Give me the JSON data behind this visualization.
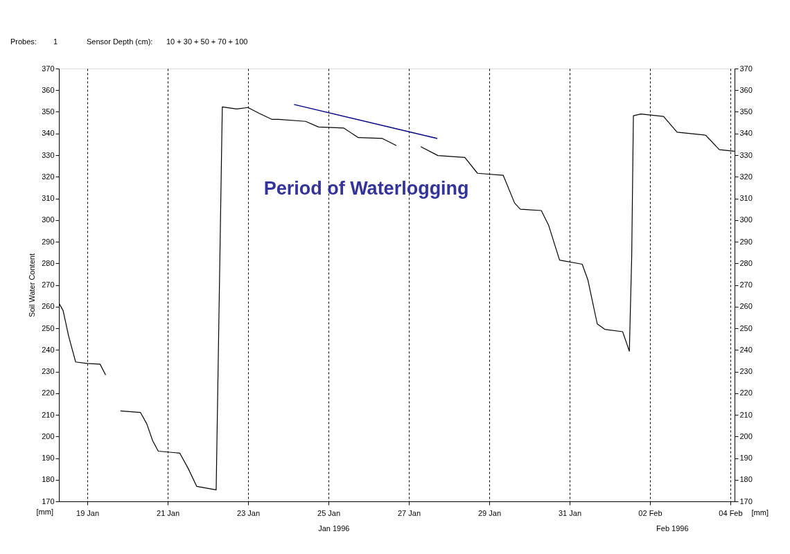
{
  "chart_data": {
    "type": "line",
    "ylabel": "Soil Water Content",
    "y2label": "[mm]",
    "annotations": [
      "Probes:",
      "1",
      "Sensor Depth (cm):",
      "10 + 30 + 50 + 70 + 100",
      "Period of Waterlogging",
      "[mm]",
      "Jan 1996",
      "Feb 1996"
    ],
    "xlim": [
      "1996-01-18T07:00",
      "1996-02-04T02:30"
    ],
    "xticks": [
      {
        "value": "1996-01-19",
        "label": "19 Jan"
      },
      {
        "value": "1996-01-21",
        "label": "21 Jan"
      },
      {
        "value": "1996-01-23",
        "label": "23 Jan"
      },
      {
        "value": "1996-01-25",
        "label": "25 Jan"
      },
      {
        "value": "1996-01-27",
        "label": "27 Jan"
      },
      {
        "value": "1996-01-29",
        "label": "29 Jan"
      },
      {
        "value": "1996-01-31",
        "label": "31 Jan"
      },
      {
        "value": "1996-02-02",
        "label": "02 Feb"
      },
      {
        "value": "1996-02-04",
        "label": "04 Feb"
      }
    ],
    "ylim": [
      170,
      370
    ],
    "yticks": [
      170,
      180,
      190,
      200,
      210,
      220,
      230,
      240,
      250,
      260,
      270,
      280,
      290,
      300,
      310,
      320,
      330,
      340,
      350,
      360,
      370
    ],
    "y2lim": [
      170,
      370
    ],
    "y2ticks": [
      170,
      180,
      190,
      200,
      210,
      220,
      230,
      240,
      250,
      260,
      270,
      280,
      290,
      300,
      310,
      320,
      330,
      340,
      350,
      360,
      370
    ],
    "grid": "x",
    "line_style": "solid",
    "series": [
      {
        "color": "#000000",
        "x": [
          "1996-01-18T07:10",
          "1996-01-18T09:30",
          "1996-01-18T12:50",
          "1996-01-18T17:00",
          "1996-01-19T00:00",
          "1996-01-19T07:35",
          "1996-01-19T10:55",
          "1996-01-19T15:00",
          "1996-01-19T19:45",
          "1996-01-20T07:40",
          "1996-01-20T11:30",
          "1996-01-20T15:00",
          "1996-01-20T18:20",
          "1996-01-21T07:10",
          "1996-01-21T12:05",
          "1996-01-21T17:20",
          "1996-01-22T04:55",
          "1996-01-22T08:35",
          "1996-01-22T17:10",
          "1996-01-22T23:55",
          "1996-01-23T06:40",
          "1996-01-23T14:20",
          "1996-01-23T18:10",
          "1996-01-24T10:20",
          "1996-01-24T18:00",
          "1996-01-25T09:10",
          "1996-01-25T17:45",
          "1996-01-26T08:10",
          "1996-01-26T16:35",
          "1996-01-27T00:00",
          "1996-01-27T07:05",
          "1996-01-27T17:20",
          "1996-01-28T09:25",
          "1996-01-28T17:00",
          "1996-01-29T08:20",
          "1996-01-29T15:10",
          "1996-01-29T18:35",
          "1996-01-30T07:05",
          "1996-01-30T11:30",
          "1996-01-30T18:00",
          "1996-01-31T07:30",
          "1996-01-31T10:55",
          "1996-01-31T16:30",
          "1996-01-31T21:00",
          "1996-02-01T07:40",
          "1996-02-01T11:40",
          "1996-02-01T13:05",
          "1996-02-01T14:05",
          "1996-02-01T18:30",
          "1996-02-02T08:05",
          "1996-02-02T16:10",
          "1996-02-03T09:15",
          "1996-02-03T17:25",
          "1996-02-04T02:25"
        ],
        "values": [
          261.4,
          258.2,
          246.3,
          234.4,
          233.7,
          233.4,
          228.4,
          null,
          211.8,
          211.1,
          205.8,
          198,
          193.2,
          192.3,
          185.4,
          176.9,
          175.3,
          352.3,
          351.3,
          352,
          349.3,
          346.5,
          346.5,
          345.6,
          343,
          342.5,
          338.1,
          337.7,
          334.4,
          null,
          333.9,
          329.8,
          328.9,
          321.6,
          320.7,
          307.8,
          305,
          304.4,
          297.5,
          281.5,
          279.6,
          272.3,
          252,
          249.5,
          248.4,
          239.4,
          283.4,
          348.2,
          349,
          347.9,
          340.6,
          339.2,
          332.5,
          331.8
        ]
      },
      {
        "type": "line",
        "color": "#000080",
        "x": [
          "1996-01-24T03:25",
          "1996-01-27T17:00"
        ],
        "values": [
          353.4,
          337.7
        ]
      }
    ]
  }
}
